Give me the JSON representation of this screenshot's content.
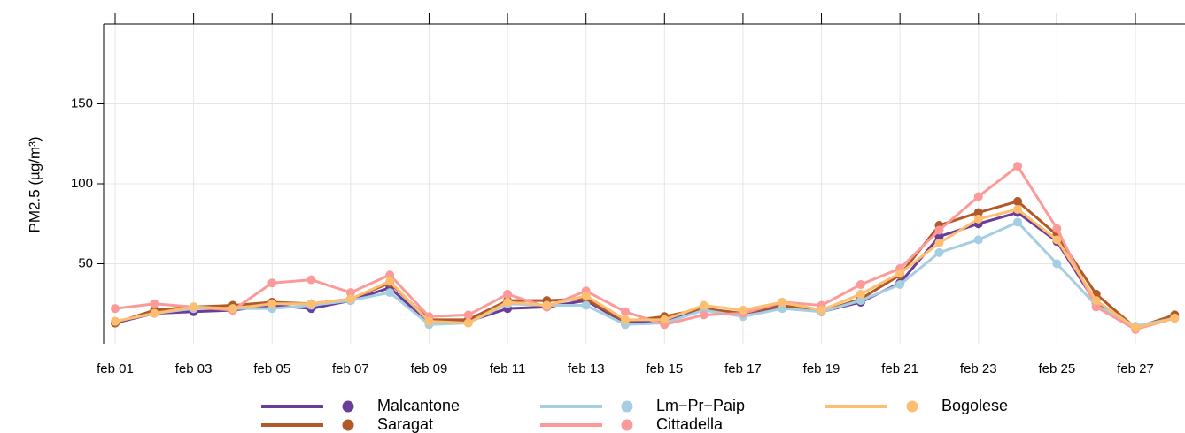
{
  "chart_data": {
    "type": "line",
    "y_label": "PM2.5 (µg/m³)",
    "categories": [
      "feb 01",
      null,
      "feb 03",
      null,
      "feb 05",
      null,
      "feb 07",
      null,
      "feb 09",
      null,
      "feb 11",
      null,
      "feb 13",
      null,
      "feb 15",
      null,
      "feb 17",
      null,
      "feb 19",
      null,
      "feb 21",
      null,
      "feb 23",
      null,
      "feb 25",
      null,
      "feb 27",
      null
    ],
    "series": [
      {
        "name": "Malcantone",
        "color": "#6a3d9a",
        "values": [
          13,
          19,
          20,
          21,
          24,
          22,
          27,
          35,
          13,
          14,
          22,
          23,
          27,
          13,
          14,
          21,
          19,
          23,
          20,
          26,
          38,
          67,
          75,
          82,
          64,
          25,
          10,
          16
        ]
      },
      {
        "name": "Saragat",
        "color": "#b15928",
        "values": [
          13,
          21,
          23,
          24,
          26,
          25,
          28,
          38,
          15,
          15,
          27,
          27,
          28,
          14,
          17,
          22,
          19,
          24,
          20,
          28,
          43,
          74,
          82,
          89,
          68,
          31,
          10,
          18
        ]
      },
      {
        "name": "Lm−Pr−Paip",
        "color": "#a6cee3",
        "values": [
          14,
          19,
          22,
          22,
          22,
          24,
          27,
          32,
          12,
          13,
          25,
          24,
          24,
          12,
          13,
          21,
          17,
          22,
          20,
          27,
          37,
          57,
          65,
          76,
          50,
          24,
          11,
          16
        ]
      },
      {
        "name": "Cittadella",
        "color": "#fb9a99",
        "values": [
          22,
          25,
          23,
          21,
          38,
          40,
          32,
          43,
          17,
          18,
          31,
          23,
          33,
          20,
          12,
          18,
          19,
          26,
          24,
          37,
          47,
          71,
          92,
          111,
          72,
          23,
          9,
          16
        ]
      },
      {
        "name": "Bogolese",
        "color": "#fdbf6f",
        "values": [
          14,
          19,
          23,
          22,
          25,
          25,
          28,
          39,
          14,
          13,
          26,
          24,
          30,
          15,
          15,
          24,
          21,
          26,
          21,
          31,
          44,
          63,
          78,
          84,
          65,
          27,
          10,
          16
        ]
      }
    ],
    "ylim": [
      0,
      200
    ],
    "yticks": [
      50,
      100,
      150
    ],
    "grid": true,
    "legend": "bottom"
  }
}
